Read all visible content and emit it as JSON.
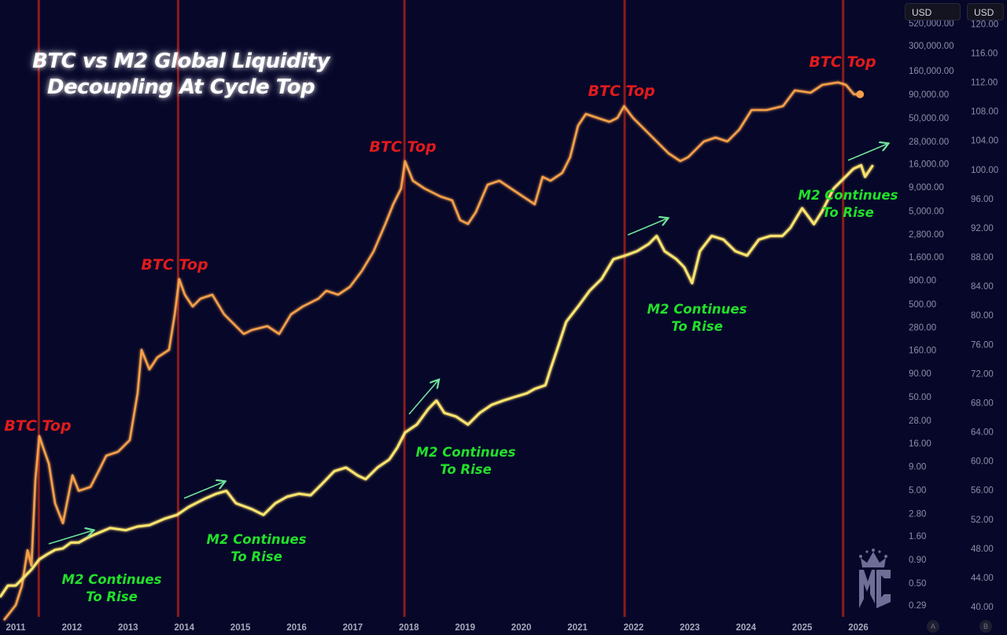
{
  "title_lines": [
    "BTC vs M2 Global Liquidity",
    "Decoupling At Cycle Top"
  ],
  "currency_selectors": [
    "USD",
    "USD"
  ],
  "scale_badges": [
    "A",
    "B"
  ],
  "annotations": {
    "btc_top": "BTC Top",
    "m2_line1": "M2 Continues",
    "m2_line2": "To Rise"
  },
  "colors": {
    "background": "#07072a",
    "btc": "#f5a04a",
    "m2": "#fde46e",
    "cycle_top_line": "#8b1c1c",
    "btc_top_label": "#e01b1b",
    "m2_label": "#22e02a",
    "arrow": "#6fe39a"
  },
  "logo_text": "MC",
  "chart_data": {
    "type": "line",
    "title": "BTC vs M2 Global Liquidity Decoupling At Cycle Top",
    "x_ticks": [
      "2011",
      "2012",
      "2013",
      "2014",
      "2015",
      "2016",
      "2017",
      "2018",
      "2019",
      "2020",
      "2021",
      "2022",
      "2023",
      "2024",
      "2025",
      "2026"
    ],
    "xlim": [
      2010.72,
      2026.7
    ],
    "left_axis": {
      "scale": "log",
      "ylim": [
        0.29,
        520000
      ],
      "ticks": [
        "520,000.00",
        "300,000.00",
        "160,000.00",
        "90,000.00",
        "50,000.00",
        "28,000.00",
        "16,000.00",
        "9,000.00",
        "5,000.00",
        "2,800.00",
        "1,600.00",
        "900.00",
        "500.00",
        "280.00",
        "160.00",
        "90.00",
        "50.00",
        "28.00",
        "16.00",
        "9.00",
        "5.00",
        "2.80",
        "1.60",
        "0.90",
        "0.50",
        "0.29"
      ],
      "tick_values": [
        520000,
        300000,
        160000,
        90000,
        50000,
        28000,
        16000,
        9000,
        5000,
        2800,
        1600,
        900,
        500,
        280,
        160,
        90,
        50,
        28,
        16,
        9,
        5,
        2.8,
        1.6,
        0.9,
        0.5,
        0.29
      ]
    },
    "right_axis": {
      "scale": "linear",
      "ylim": [
        40,
        120
      ],
      "ticks": [
        "120.00",
        "116.00",
        "112.00",
        "108.00",
        "104.00",
        "100.00",
        "96.00",
        "92.00",
        "88.00",
        "84.00",
        "80.00",
        "76.00",
        "72.00",
        "68.00",
        "64.00",
        "60.00",
        "56.00",
        "52.00",
        "48.00",
        "44.00",
        "40.00"
      ],
      "tick_values": [
        120,
        116,
        112,
        108,
        104,
        100,
        96,
        92,
        88,
        84,
        80,
        76,
        72,
        68,
        64,
        60,
        56,
        52,
        48,
        44,
        40
      ]
    },
    "cycle_tops": [
      2011.41,
      2013.89,
      2017.92,
      2021.84,
      2025.73
    ],
    "grid": false,
    "series": [
      {
        "axis": "left",
        "x": [
          2010.79,
          2011.0,
          2011.11,
          2011.21,
          2011.28,
          2011.35,
          2011.42,
          2011.49,
          2011.59,
          2011.7,
          2011.84,
          2011.91,
          2012.01,
          2012.12,
          2012.33,
          2012.47,
          2012.61,
          2012.82,
          2013.03,
          2013.17,
          2013.24,
          2013.38,
          2013.52,
          2013.73,
          2013.83,
          2013.91,
          2014.01,
          2014.15,
          2014.29,
          2014.5,
          2014.71,
          2014.92,
          2015.06,
          2015.2,
          2015.48,
          2015.69,
          2015.9,
          2016.11,
          2016.39,
          2016.53,
          2016.74,
          2016.95,
          2017.16,
          2017.37,
          2017.58,
          2017.72,
          2017.86,
          2017.93,
          2018.07,
          2018.28,
          2018.56,
          2018.77,
          2018.91,
          2019.05,
          2019.19,
          2019.4,
          2019.61,
          2019.82,
          2020.03,
          2020.24,
          2020.38,
          2020.52,
          2020.73,
          2020.87,
          2021.01,
          2021.15,
          2021.36,
          2021.57,
          2021.71,
          2021.83,
          2021.99,
          2022.2,
          2022.41,
          2022.62,
          2022.83,
          2022.97,
          2023.11,
          2023.25,
          2023.46,
          2023.67,
          2023.88,
          2024.1,
          2024.37,
          2024.66,
          2024.87,
          2025.15,
          2025.36,
          2025.64,
          2025.78,
          2025.92,
          2026.03
        ],
        "values": [
          0.2,
          0.29,
          0.47,
          1.13,
          0.77,
          6.5,
          19,
          14.2,
          9.6,
          3.6,
          2.2,
          3.6,
          7.2,
          4.9,
          5.4,
          7.9,
          11.7,
          12.9,
          17.2,
          55,
          161,
          99,
          133,
          161,
          387,
          928,
          629,
          470,
          571,
          629,
          387,
          289,
          238,
          262,
          289,
          238,
          387,
          470,
          571,
          693,
          629,
          764,
          1127,
          1834,
          3619,
          5884,
          8683,
          17156,
          10553,
          8683,
          7151,
          6493,
          3993,
          3619,
          4846,
          9576,
          10553,
          8683,
          7151,
          5884,
          11626,
          10553,
          12806,
          18896,
          41151,
          55129,
          49938,
          45356,
          49938,
          66903,
          49938,
          37352,
          27884,
          20816,
          17156,
          18896,
          22983,
          27884,
          30740,
          27884,
          37352,
          60726,
          60726,
          66903,
          98716,
          93177,
          113100,
          120060,
          113100,
          89610,
          89610
        ]
      },
      {
        "axis": "right",
        "x": [
          2010.72,
          2010.86,
          2011.0,
          2011.14,
          2011.28,
          2011.42,
          2011.56,
          2011.7,
          2011.84,
          2011.98,
          2012.12,
          2012.26,
          2012.4,
          2012.68,
          2012.96,
          2013.17,
          2013.38,
          2013.66,
          2013.87,
          2014.08,
          2014.36,
          2014.57,
          2014.75,
          2014.92,
          2015.2,
          2015.41,
          2015.62,
          2015.83,
          2016.04,
          2016.25,
          2016.46,
          2016.67,
          2016.88,
          2017.09,
          2017.23,
          2017.44,
          2017.65,
          2017.79,
          2017.93,
          2018.14,
          2018.35,
          2018.49,
          2018.63,
          2018.84,
          2019.05,
          2019.26,
          2019.47,
          2019.68,
          2019.89,
          2020.1,
          2020.24,
          2020.43,
          2020.52,
          2020.66,
          2020.8,
          2021.01,
          2021.22,
          2021.43,
          2021.64,
          2021.85,
          2022.06,
          2022.27,
          2022.41,
          2022.55,
          2022.76,
          2022.9,
          2023.04,
          2023.18,
          2023.39,
          2023.6,
          2023.81,
          2024.02,
          2024.23,
          2024.44,
          2024.65,
          2024.79,
          2025.0,
          2025.21,
          2025.35,
          2025.56,
          2025.77,
          2025.91,
          2026.05,
          2026.12,
          2026.26
        ],
        "values": [
          41.3,
          42.9,
          42.9,
          44.0,
          45.1,
          46.5,
          47.2,
          47.8,
          48.0,
          48.8,
          48.8,
          49.4,
          49.9,
          50.8,
          50.5,
          51.0,
          51.2,
          52.1,
          52.6,
          53.7,
          54.8,
          55.5,
          55.9,
          54.2,
          53.4,
          52.6,
          54.2,
          55.1,
          55.5,
          55.3,
          56.9,
          58.6,
          59.1,
          58.0,
          57.5,
          59.1,
          60.2,
          61.8,
          63.9,
          65.0,
          67.2,
          68.3,
          66.6,
          66.1,
          65.0,
          66.6,
          67.7,
          68.3,
          68.8,
          69.3,
          69.9,
          70.4,
          72.6,
          75.8,
          79.1,
          81.2,
          83.4,
          85.0,
          87.7,
          88.2,
          88.8,
          89.8,
          90.9,
          88.8,
          87.7,
          86.6,
          84.4,
          88.8,
          90.9,
          90.4,
          88.8,
          88.2,
          90.4,
          90.9,
          90.9,
          92.0,
          94.7,
          92.5,
          94.2,
          97.4,
          99.0,
          100.1,
          100.6,
          99.0,
          100.6
        ]
      }
    ]
  }
}
